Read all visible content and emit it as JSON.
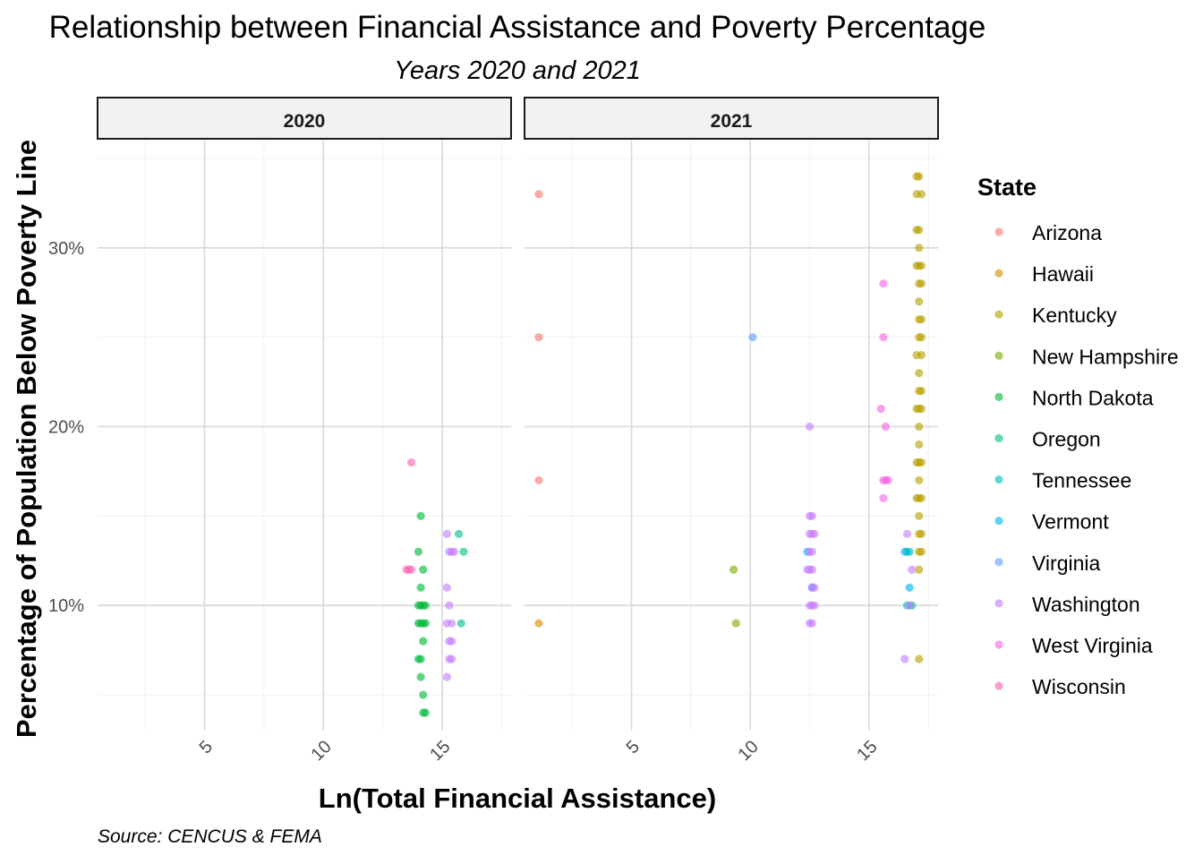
{
  "chart_data": {
    "type": "scatter",
    "title": "Relationship between Financial Assistance and Poverty Percentage",
    "subtitle": "Years 2020 and 2021",
    "xlabel": "Ln(Total Financial Assistance)",
    "ylabel": "Percentage of Population Below Poverty Line",
    "caption": "Source: CENCUS & FEMA",
    "xlim": [
      0.5,
      17.9
    ],
    "ylim": [
      3,
      36
    ],
    "x_ticks": [
      5,
      10,
      15
    ],
    "y_ticks": [
      10,
      20,
      30
    ],
    "y_tick_labels": [
      "10%",
      "20%",
      "30%"
    ],
    "grid": true,
    "legend": {
      "title": "State",
      "position": "right",
      "entries": [
        "Arizona",
        "Hawaii",
        "Kentucky",
        "New Hampshire",
        "North Dakota",
        "Oregon",
        "Tennessee",
        "Vermont",
        "Virginia",
        "Washington",
        "West Virginia",
        "Wisconsin"
      ]
    },
    "colors": {
      "Arizona": "#F8766D",
      "Hawaii": "#DE8C00",
      "Kentucky": "#B79F00",
      "New Hampshire": "#7CAE00",
      "North Dakota": "#00BA38",
      "Oregon": "#00C08B",
      "Tennessee": "#00BFC4",
      "Vermont": "#00B4F0",
      "Virginia": "#619CFF",
      "Washington": "#C77CFF",
      "West Virginia": "#F564E3",
      "Wisconsin": "#FF64B0"
    },
    "panels": [
      {
        "label": "2020",
        "series": [
          {
            "name": "North Dakota",
            "points": [
              [
                14.1,
                15
              ],
              [
                14.0,
                13
              ],
              [
                14.2,
                12
              ],
              [
                14.1,
                11
              ],
              [
                14.0,
                10
              ],
              [
                14.1,
                10
              ],
              [
                14.2,
                10
              ],
              [
                14.3,
                10
              ],
              [
                14.0,
                9
              ],
              [
                14.1,
                9
              ],
              [
                14.2,
                9
              ],
              [
                14.3,
                9
              ],
              [
                14.2,
                8
              ],
              [
                14.0,
                7
              ],
              [
                14.1,
                7
              ],
              [
                14.1,
                6
              ],
              [
                14.2,
                5
              ],
              [
                14.2,
                4
              ],
              [
                14.3,
                4
              ]
            ]
          },
          {
            "name": "Oregon",
            "points": [
              [
                15.7,
                14
              ],
              [
                15.9,
                13
              ],
              [
                15.8,
                9
              ]
            ]
          },
          {
            "name": "Washington",
            "points": [
              [
                15.2,
                14
              ],
              [
                15.3,
                13
              ],
              [
                15.4,
                13
              ],
              [
                15.5,
                13
              ],
              [
                15.2,
                11
              ],
              [
                15.3,
                10
              ],
              [
                15.2,
                9
              ],
              [
                15.4,
                9
              ],
              [
                15.3,
                8
              ],
              [
                15.4,
                8
              ],
              [
                15.3,
                7
              ],
              [
                15.4,
                7
              ],
              [
                15.2,
                6
              ]
            ]
          },
          {
            "name": "Wisconsin",
            "points": [
              [
                13.7,
                18
              ],
              [
                13.5,
                12
              ],
              [
                13.6,
                12
              ],
              [
                13.7,
                12
              ]
            ]
          }
        ]
      },
      {
        "label": "2021",
        "series": [
          {
            "name": "Arizona",
            "points": [
              [
                1.1,
                33
              ],
              [
                1.1,
                25
              ],
              [
                1.1,
                17
              ]
            ]
          },
          {
            "name": "Hawaii",
            "points": [
              [
                1.1,
                9
              ]
            ]
          },
          {
            "name": "Kentucky",
            "points": [
              [
                17.0,
                34
              ],
              [
                17.1,
                34
              ],
              [
                17.0,
                33
              ],
              [
                17.2,
                33
              ],
              [
                17.0,
                31
              ],
              [
                17.1,
                31
              ],
              [
                17.1,
                30
              ],
              [
                17.0,
                29
              ],
              [
                17.1,
                29
              ],
              [
                17.2,
                29
              ],
              [
                17.1,
                28
              ],
              [
                17.2,
                28
              ],
              [
                17.1,
                27
              ],
              [
                17.1,
                26
              ],
              [
                17.2,
                26
              ],
              [
                17.1,
                25
              ],
              [
                17.2,
                25
              ],
              [
                17.0,
                24
              ],
              [
                17.2,
                24
              ],
              [
                17.1,
                23
              ],
              [
                17.1,
                22
              ],
              [
                17.2,
                22
              ],
              [
                17.0,
                21
              ],
              [
                17.1,
                21
              ],
              [
                17.2,
                21
              ],
              [
                17.1,
                20
              ],
              [
                17.1,
                19
              ],
              [
                17.0,
                18
              ],
              [
                17.1,
                18
              ],
              [
                17.2,
                18
              ],
              [
                17.1,
                17
              ],
              [
                17.0,
                16
              ],
              [
                17.1,
                16
              ],
              [
                17.2,
                16
              ],
              [
                17.1,
                15
              ],
              [
                17.1,
                14
              ],
              [
                17.2,
                14
              ],
              [
                17.1,
                13
              ],
              [
                17.2,
                13
              ],
              [
                17.1,
                12
              ],
              [
                17.1,
                7
              ]
            ]
          },
          {
            "name": "New Hampshire",
            "points": [
              [
                9.3,
                12
              ],
              [
                9.4,
                9
              ]
            ]
          },
          {
            "name": "Oregon",
            "points": [
              [
                16.6,
                13
              ],
              [
                16.8,
                10
              ]
            ]
          },
          {
            "name": "Tennessee",
            "points": [
              [
                16.7,
                13
              ],
              [
                16.6,
                10
              ]
            ]
          },
          {
            "name": "Vermont",
            "points": [
              [
                12.4,
                13
              ],
              [
                12.6,
                11
              ],
              [
                16.5,
                13
              ],
              [
                16.7,
                11
              ]
            ]
          },
          {
            "name": "Virginia",
            "points": [
              [
                10.1,
                25
              ]
            ]
          },
          {
            "name": "Washington",
            "points": [
              [
                12.5,
                20
              ],
              [
                12.5,
                15
              ],
              [
                12.6,
                15
              ],
              [
                12.5,
                14
              ],
              [
                12.6,
                14
              ],
              [
                12.7,
                14
              ],
              [
                12.5,
                13
              ],
              [
                12.6,
                13
              ],
              [
                12.4,
                12
              ],
              [
                12.5,
                12
              ],
              [
                12.6,
                12
              ],
              [
                12.6,
                11
              ],
              [
                12.7,
                11
              ],
              [
                12.5,
                10
              ],
              [
                12.6,
                10
              ],
              [
                12.7,
                10
              ],
              [
                12.5,
                9
              ],
              [
                12.6,
                9
              ],
              [
                16.6,
                14
              ],
              [
                16.8,
                12
              ],
              [
                16.7,
                10
              ],
              [
                16.5,
                7
              ]
            ]
          },
          {
            "name": "West Virginia",
            "points": [
              [
                15.6,
                28
              ],
              [
                15.6,
                25
              ],
              [
                15.5,
                21
              ],
              [
                15.7,
                20
              ],
              [
                15.6,
                17
              ],
              [
                15.7,
                17
              ],
              [
                15.8,
                17
              ],
              [
                15.6,
                16
              ]
            ]
          }
        ]
      }
    ]
  }
}
